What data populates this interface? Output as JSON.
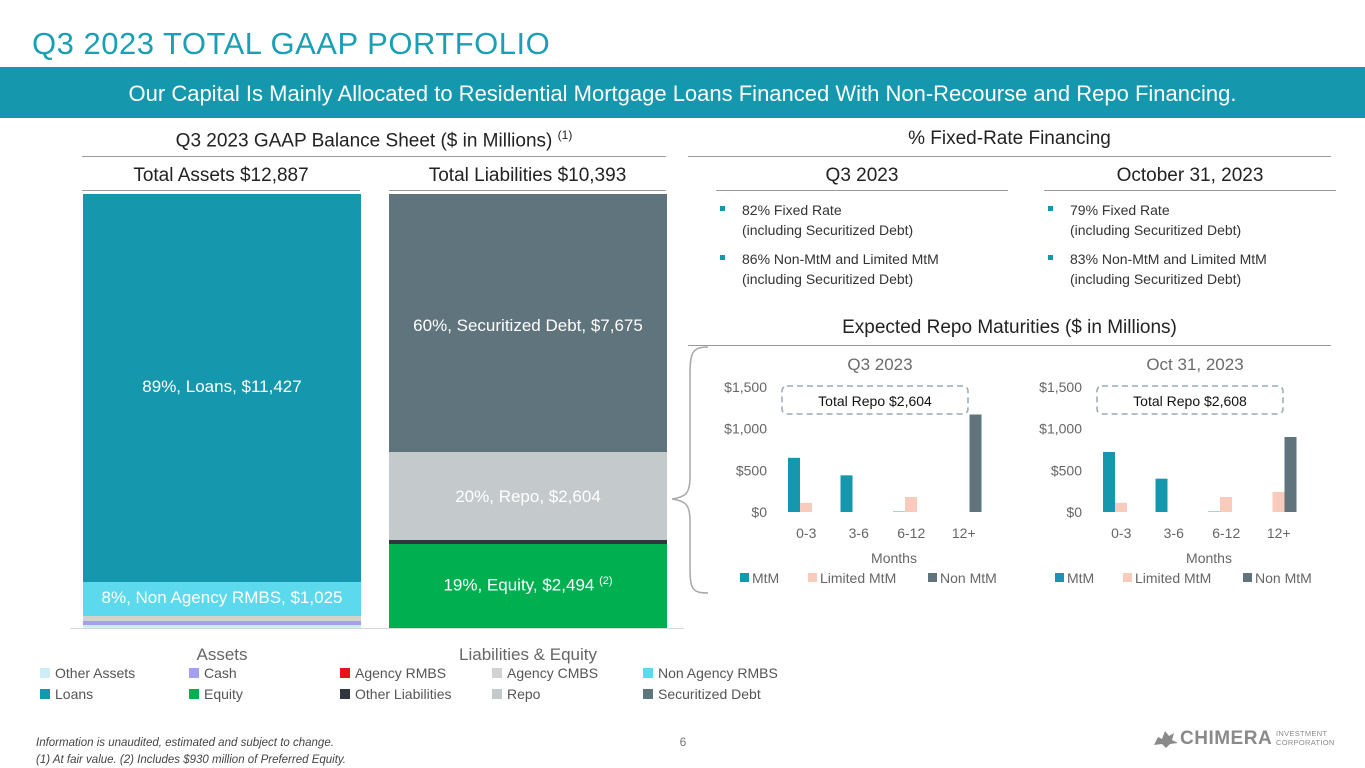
{
  "page": {
    "title": "Q3 2023 TOTAL GAAP PORTFOLIO",
    "banner": "Our Capital Is Mainly Allocated to Residential Mortgage Loans Financed With Non-Recourse and Repo Financing.",
    "page_number": "6",
    "footnotes": [
      "Information is unaudited, estimated and subject to change.",
      "(1) At fair value. (2) Includes $930 million of Preferred Equity."
    ],
    "logo": {
      "name": "CHIMERA",
      "sub1": "INVESTMENT",
      "sub2": "CORPORATION"
    }
  },
  "balance_sheet": {
    "title": "Q3 2023 GAAP Balance Sheet ($ in Millions)",
    "title_note": "(1)",
    "assets_header": "Total Assets $12,887",
    "liabilities_header": "Total Liabilities $10,393",
    "loans_label": "89%, Loans, $11,427",
    "non_agency_label": "8%, Non Agency RMBS, $1,025",
    "securitized_label": "60%, Securitized Debt, $7,675",
    "repo_label": "20%, Repo, $2,604",
    "equity_label": "19%, Equity, $2,494",
    "equity_note": "(2)",
    "x_categories": [
      "Assets",
      "Liabilities & Equity"
    ],
    "legend": [
      {
        "label": "Other Assets",
        "color": "#cdeef5"
      },
      {
        "label": "Cash",
        "color": "#a5a0ee"
      },
      {
        "label": "Agency RMBS",
        "color": "#e8141a"
      },
      {
        "label": "Agency CMBS",
        "color": "#d2d2d2"
      },
      {
        "label": "Non Agency RMBS",
        "color": "#5dd9ee"
      },
      {
        "label": "Loans",
        "color": "#1597ad"
      },
      {
        "label": "Equity",
        "color": "#00b050"
      },
      {
        "label": "Other Liabilities",
        "color": "#2f363d"
      },
      {
        "label": "Repo",
        "color": "#c4c9cc"
      },
      {
        "label": "Securitized Debt",
        "color": "#5f747d"
      }
    ]
  },
  "fixed_rate": {
    "title": "% Fixed-Rate Financing",
    "columns": [
      {
        "header": "Q3 2023",
        "bullets": [
          [
            "82% Fixed Rate",
            "(including Securitized Debt)"
          ],
          [
            "86% Non-MtM and Limited MtM",
            "(including Securitized Debt)"
          ]
        ]
      },
      {
        "header": "October 31, 2023",
        "bullets": [
          [
            "79% Fixed Rate",
            "(including Securitized Debt)"
          ],
          [
            "83% Non-MtM and Limited MtM",
            "(including Securitized Debt)"
          ]
        ]
      }
    ]
  },
  "repo": {
    "title": "Expected Repo Maturities ($ in Millions)"
  },
  "chart_data": [
    {
      "type": "bar",
      "stacked": true,
      "title": "",
      "xlabel": "",
      "ylabel": "",
      "categories": [
        "Assets",
        "Liabilities & Equity"
      ],
      "unit": "$ millions",
      "series": [
        {
          "name": "Other Assets",
          "values": [
            95,
            0
          ]
        },
        {
          "name": "Cash",
          "values": [
            120,
            0
          ]
        },
        {
          "name": "Agency RMBS",
          "values": [
            0,
            0
          ]
        },
        {
          "name": "Agency CMBS",
          "values": [
            125,
            0
          ]
        },
        {
          "name": "Non Agency RMBS",
          "values": [
            1025,
            0
          ]
        },
        {
          "name": "Loans",
          "values": [
            11427,
            0
          ]
        },
        {
          "name": "Equity",
          "values": [
            0,
            2494
          ]
        },
        {
          "name": "Other Liabilities",
          "values": [
            0,
            114
          ]
        },
        {
          "name": "Repo",
          "values": [
            0,
            2604
          ]
        },
        {
          "name": "Securitized Debt",
          "values": [
            0,
            7675
          ]
        }
      ],
      "colors": {
        "Other Assets": "#cdeef5",
        "Cash": "#a5a0ee",
        "Agency RMBS": "#e8141a",
        "Agency CMBS": "#d2d2d2",
        "Non Agency RMBS": "#5dd9ee",
        "Loans": "#1597ad",
        "Equity": "#00b050",
        "Other Liabilities": "#2f363d",
        "Repo": "#c4c9cc",
        "Securitized Debt": "#5f747d"
      }
    },
    {
      "type": "bar",
      "title": "Q3 2023",
      "total_label": "Total Repo $2,604",
      "xlabel": "Months",
      "ylabel": "",
      "categories": [
        "0-3",
        "3-6",
        "6-12",
        "12+"
      ],
      "ylim": [
        0,
        1500
      ],
      "yticks": [
        "$1,500",
        "$1,000",
        "$500",
        "$0"
      ],
      "ytick_values": [
        1500,
        1000,
        500,
        0
      ],
      "series": [
        {
          "name": "MtM",
          "color": "#1597ad",
          "values": [
            650,
            440,
            5,
            0
          ]
        },
        {
          "name": "Limited MtM",
          "color": "#f8cbbd",
          "values": [
            110,
            0,
            180,
            0
          ]
        },
        {
          "name": "Non MtM",
          "color": "#5f747d",
          "values": [
            0,
            0,
            0,
            1170
          ]
        }
      ]
    },
    {
      "type": "bar",
      "title": "Oct 31, 2023",
      "total_label": "Total Repo $2,608",
      "xlabel": "Months",
      "ylabel": "",
      "categories": [
        "0-3",
        "3-6",
        "6-12",
        "12+"
      ],
      "ylim": [
        0,
        1500
      ],
      "yticks": [
        "$1,500",
        "$1,000",
        "$500",
        "$0"
      ],
      "ytick_values": [
        1500,
        1000,
        500,
        0
      ],
      "series": [
        {
          "name": "MtM",
          "color": "#1597ad",
          "values": [
            720,
            400,
            5,
            0
          ]
        },
        {
          "name": "Limited MtM",
          "color": "#f8cbbd",
          "values": [
            110,
            0,
            180,
            240
          ]
        },
        {
          "name": "Non MtM",
          "color": "#5f747d",
          "values": [
            0,
            0,
            0,
            900
          ]
        }
      ]
    }
  ]
}
